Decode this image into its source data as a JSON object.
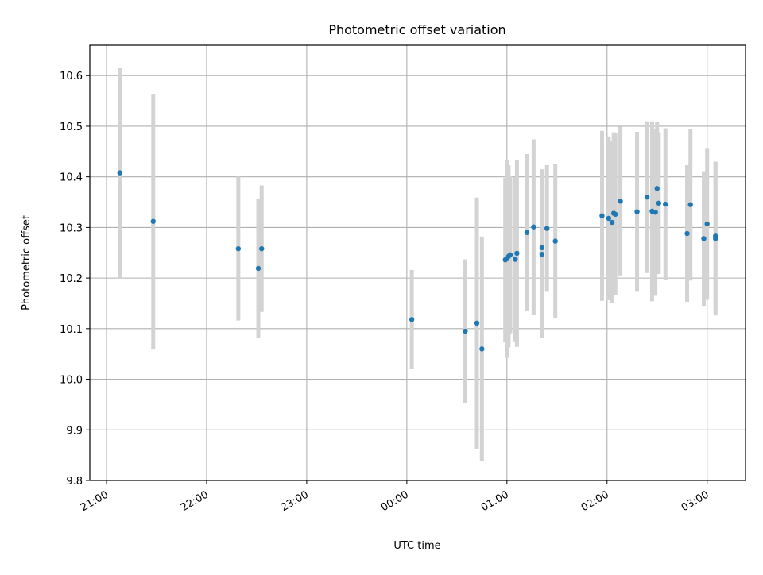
{
  "chart_data": {
    "type": "scatter",
    "title": "Photometric offset variation",
    "xlabel": "UTC time",
    "ylabel": "Photometric offset",
    "x_ticks": [
      "21:00",
      "22:00",
      "23:00",
      "00:00",
      "01:00",
      "02:00",
      "03:00"
    ],
    "y_ticks": [
      "9.8",
      "9.9",
      "10.0",
      "10.1",
      "10.2",
      "10.3",
      "10.4",
      "10.5",
      "10.6"
    ],
    "xlim": [
      "20:50",
      "03:23"
    ],
    "ylim": [
      9.8,
      10.66
    ],
    "grid": true,
    "x_tick_rotation_deg": 30,
    "marker_color": "#1f77b4",
    "errorbar_color": "#d3d3d3",
    "series": [
      {
        "x": [
          "21:08",
          "21:28",
          "22:19",
          "22:31",
          "22:33",
          "00:03",
          "00:35",
          "00:42",
          "00:45",
          "00:59",
          "01:00",
          "01:01",
          "01:02",
          "01:05",
          "01:06",
          "01:12",
          "01:16",
          "01:21",
          "01:21",
          "01:24",
          "01:29",
          "01:57",
          "02:01",
          "02:03",
          "02:04",
          "02:05",
          "02:08",
          "02:18",
          "02:24",
          "02:27",
          "02:29",
          "02:30",
          "02:31",
          "02:35",
          "02:48",
          "02:50",
          "02:58",
          "03:00",
          "03:05",
          "03:05"
        ],
        "y": [
          10.408,
          10.312,
          10.258,
          10.219,
          10.258,
          10.118,
          10.095,
          10.111,
          10.06,
          10.236,
          10.238,
          10.243,
          10.246,
          10.237,
          10.249,
          10.29,
          10.301,
          10.26,
          10.247,
          10.298,
          10.273,
          10.323,
          10.318,
          10.31,
          10.328,
          10.326,
          10.352,
          10.331,
          10.36,
          10.332,
          10.33,
          10.377,
          10.348,
          10.346,
          10.288,
          10.345,
          10.278,
          10.307,
          10.278,
          10.283
        ],
        "yerr": [
          0.208,
          0.252,
          0.142,
          0.138,
          0.125,
          0.098,
          0.142,
          0.248,
          0.222,
          0.162,
          0.196,
          0.18,
          0.155,
          0.162,
          0.185,
          0.155,
          0.173,
          0.155,
          0.165,
          0.125,
          0.152,
          0.168,
          0.162,
          0.16,
          0.16,
          0.16,
          0.147,
          0.158,
          0.15,
          0.178,
          0.165,
          0.132,
          0.14,
          0.15,
          0.135,
          0.15,
          0.133,
          0.15,
          0.152,
          0.147
        ]
      }
    ]
  }
}
